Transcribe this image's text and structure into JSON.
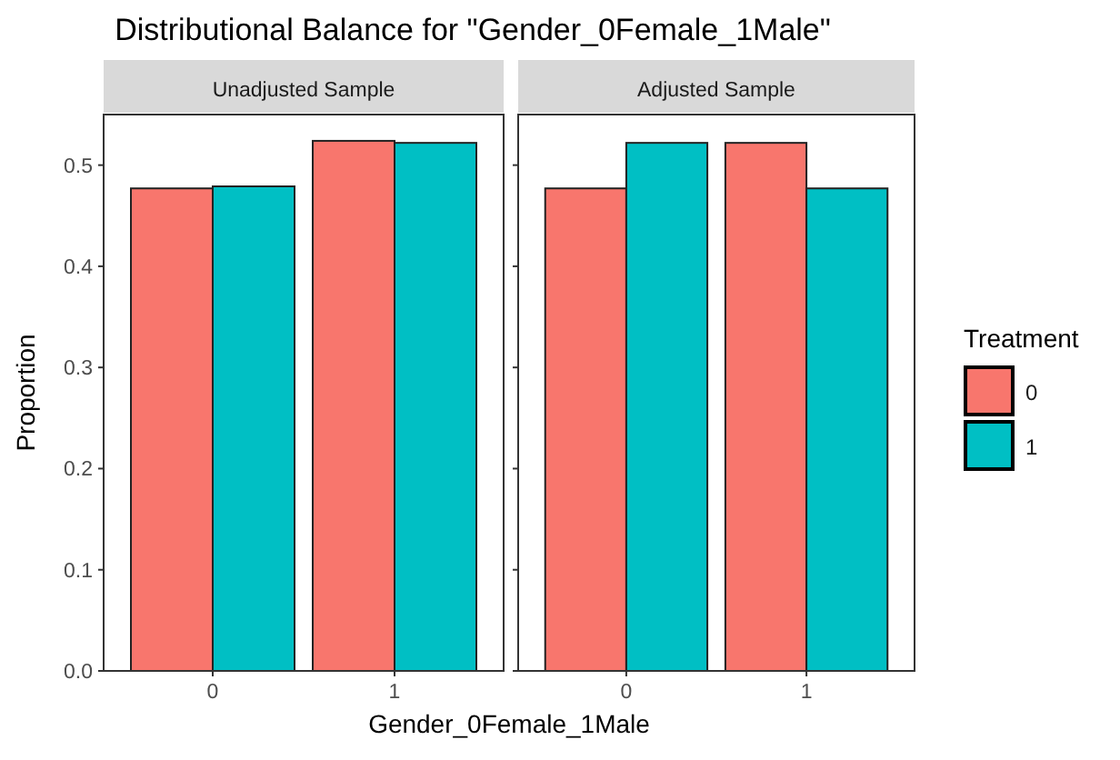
{
  "chart_data": [
    {
      "type": "bar",
      "title": "Distributional Balance for \"Gender_0Female_1Male\"",
      "subtitle": "Unadjusted Sample",
      "xlabel": "Gender_0Female_1Male",
      "ylabel": "Proportion",
      "categories": [
        "0",
        "1"
      ],
      "ylim": [
        0,
        0.55
      ],
      "yticks": [
        {
          "value": 0,
          "label": "0.0"
        },
        0.1,
        0.2,
        0.3,
        0.4,
        0.5
      ],
      "grid": false,
      "series": [
        {
          "color": "#f8766d",
          "values": [
            0.477,
            0.524
          ]
        },
        {
          "color": "#00bfc4",
          "values": [
            0.479,
            0.522
          ]
        }
      ]
    },
    {
      "type": "bar",
      "subtitle": "Adjusted Sample",
      "legend_title": "Treatment",
      "legend": "right",
      "tick_labels": "x",
      "categories": [
        "0",
        "1"
      ],
      "ylim": [
        0,
        0.55
      ],
      "yticks": [
        {
          "value": 0,
          "label": null
        },
        {
          "value": 0.1,
          "label": null
        },
        {
          "value": 0.2,
          "label": null
        },
        {
          "value": 0.3,
          "label": null
        },
        {
          "value": 0.4,
          "label": null
        },
        {
          "value": 0.5,
          "label": null
        }
      ],
      "grid": false,
      "series": [
        {
          "name": "0",
          "color": "#f8766d",
          "values": [
            0.477,
            0.522
          ]
        },
        {
          "name": "1",
          "color": "#00bfc4",
          "values": [
            0.522,
            0.477
          ]
        }
      ]
    }
  ]
}
